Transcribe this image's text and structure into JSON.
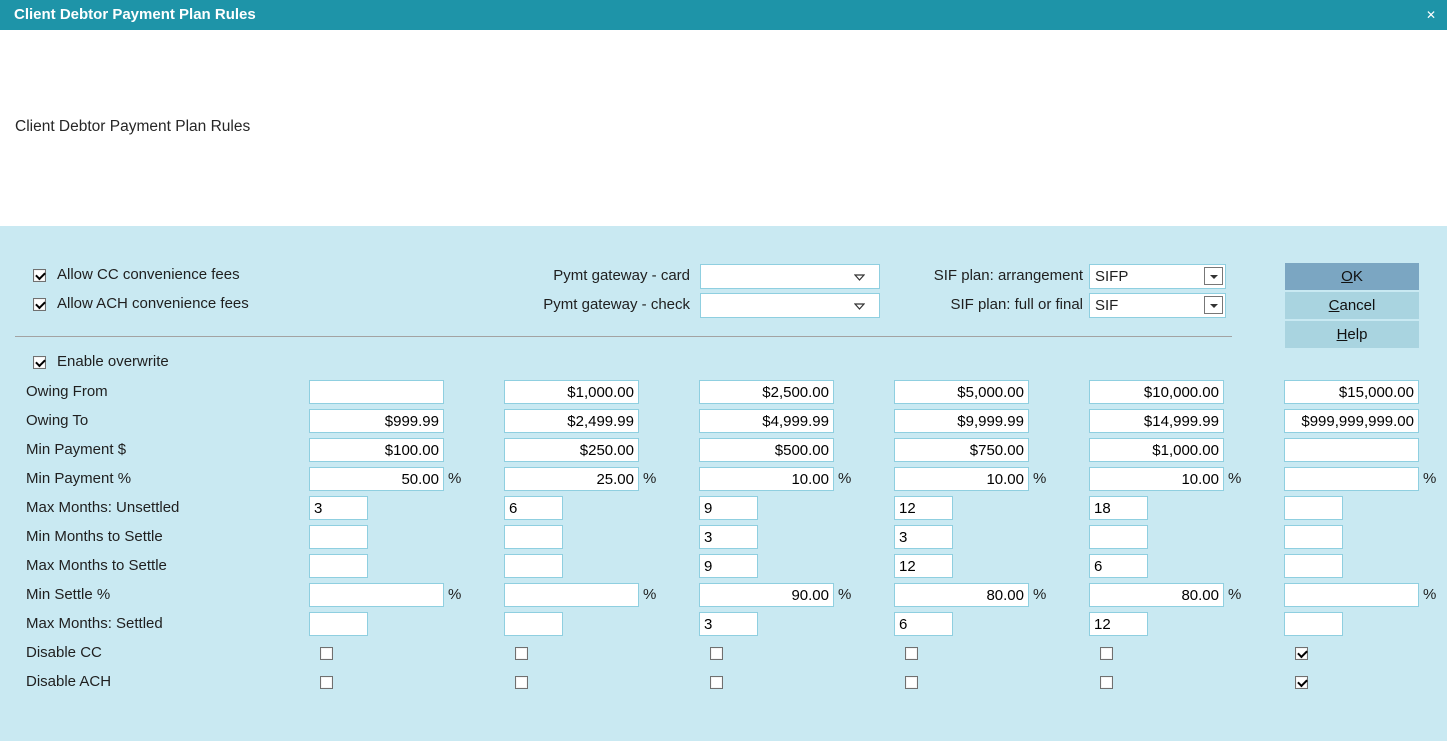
{
  "window": {
    "title": "Client Debtor Payment Plan Rules",
    "close_glyph": "✕"
  },
  "header": {
    "title": "Client Debtor Payment Plan Rules"
  },
  "options": {
    "allow_cc_label": "Allow CC convenience fees",
    "allow_cc_checked": true,
    "allow_ach_label": "Allow ACH convenience fees",
    "allow_ach_checked": true,
    "enable_overwrite_label": "Enable overwrite",
    "enable_overwrite_checked": true
  },
  "gateway": {
    "card_label": "Pymt gateway - card",
    "card_value": "",
    "check_label": "Pymt gateway - check",
    "check_value": ""
  },
  "sif": {
    "arrangement_label": "SIF plan: arrangement",
    "arrangement_value": "SIFP",
    "full_or_final_label": "SIF plan: full or final",
    "full_or_final_value": "SIF"
  },
  "buttons": {
    "ok_label": "OK",
    "cancel_label": "Cancel",
    "help_label": "Help"
  },
  "grid": {
    "percent_suffix": "%",
    "rows": [
      {
        "label": "Owing From",
        "type": "money",
        "values": [
          "",
          "$1,000.00",
          "$2,500.00",
          "$5,000.00",
          "$10,000.00",
          "$15,000.00"
        ]
      },
      {
        "label": "Owing To",
        "type": "money",
        "values": [
          "$999.99",
          "$2,499.99",
          "$4,999.99",
          "$9,999.99",
          "$14,999.99",
          "$999,999,999.00"
        ]
      },
      {
        "label": "Min Payment $",
        "type": "money",
        "values": [
          "$100.00",
          "$250.00",
          "$500.00",
          "$750.00",
          "$1,000.00",
          ""
        ]
      },
      {
        "label": "Min Payment %",
        "type": "percent",
        "values": [
          "50.00",
          "25.00",
          "10.00",
          "10.00",
          "10.00",
          ""
        ]
      },
      {
        "label": "Max Months: Unsettled",
        "type": "months",
        "values": [
          "3",
          "6",
          "9",
          "12",
          "18",
          ""
        ]
      },
      {
        "label": "Min Months to Settle",
        "type": "months",
        "values": [
          "",
          "",
          "3",
          "3",
          "",
          ""
        ]
      },
      {
        "label": "Max Months to Settle",
        "type": "months",
        "values": [
          "",
          "",
          "9",
          "12",
          "6",
          ""
        ]
      },
      {
        "label": "Min Settle %",
        "type": "percent",
        "values": [
          "",
          "",
          "90.00",
          "80.00",
          "80.00",
          ""
        ]
      },
      {
        "label": "Max Months: Settled",
        "type": "months",
        "values": [
          "",
          "",
          "3",
          "6",
          "12",
          ""
        ]
      },
      {
        "label": "Disable CC",
        "type": "checkbox",
        "values": [
          false,
          false,
          false,
          false,
          false,
          true
        ]
      },
      {
        "label": "Disable ACH",
        "type": "checkbox",
        "values": [
          false,
          false,
          false,
          false,
          false,
          true
        ]
      }
    ]
  },
  "colors": {
    "titlebar": "#1E94A8",
    "panel": "#C9E9F2",
    "ok_button": "#7BA6C2",
    "secondary_button": "#A9D4E0",
    "field_border": "#8FCFE0"
  }
}
